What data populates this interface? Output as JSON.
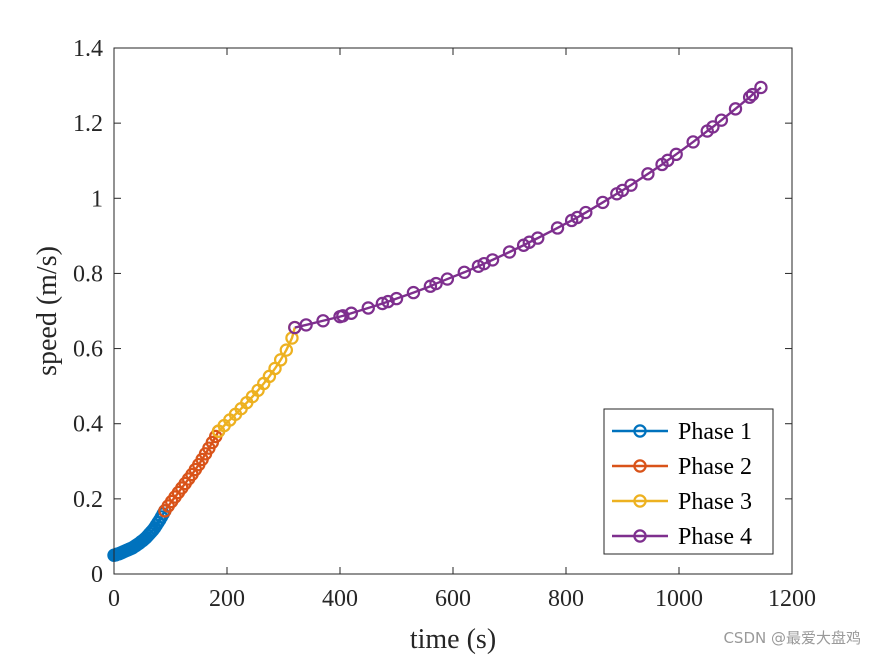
{
  "chart_data": {
    "type": "line",
    "title": "",
    "xlabel": "time (s)",
    "ylabel": "speed (m/s)",
    "xlim": [
      0,
      1200
    ],
    "ylim": [
      0,
      1.4
    ],
    "xticks": [
      0,
      200,
      400,
      600,
      800,
      1000,
      1200
    ],
    "xtick_labels": [
      "0",
      "200",
      "400",
      "600",
      "800",
      "1000",
      "1200"
    ],
    "yticks": [
      0,
      0.2,
      0.4,
      0.6,
      0.8,
      1.0,
      1.2,
      1.4
    ],
    "ytick_labels": [
      "0",
      "0.2",
      "0.4",
      "0.6",
      "0.8",
      "1",
      "1.2",
      "1.4"
    ],
    "grid": false,
    "legend_position": "bottom-right",
    "series": [
      {
        "name": "Phase 1",
        "color": "#0072BD",
        "marker": "circle",
        "x": [
          0,
          3,
          6,
          9,
          12,
          15,
          18,
          21,
          24,
          27,
          30,
          33,
          36,
          39,
          42,
          45,
          48,
          51,
          54,
          57,
          60,
          63,
          66,
          69,
          72,
          75,
          78,
          81,
          84,
          87,
          90
        ],
        "y": [
          0.05,
          0.051,
          0.053,
          0.054,
          0.056,
          0.058,
          0.06,
          0.062,
          0.064,
          0.066,
          0.068,
          0.07,
          0.073,
          0.076,
          0.079,
          0.082,
          0.086,
          0.089,
          0.093,
          0.097,
          0.102,
          0.107,
          0.112,
          0.117,
          0.123,
          0.13,
          0.137,
          0.144,
          0.152,
          0.16,
          0.168
        ]
      },
      {
        "name": "Phase 2",
        "color": "#D95319",
        "marker": "circle",
        "x": [
          90,
          96,
          102,
          108,
          114,
          120,
          126,
          132,
          138,
          144,
          150,
          156,
          162,
          168,
          174,
          180,
          185
        ],
        "y": [
          0.168,
          0.181,
          0.193,
          0.205,
          0.217,
          0.229,
          0.241,
          0.253,
          0.265,
          0.278,
          0.291,
          0.305,
          0.32,
          0.335,
          0.35,
          0.366,
          0.38
        ]
      },
      {
        "name": "Phase 3",
        "color": "#EDB120",
        "marker": "circle",
        "x": [
          185,
          195,
          205,
          215,
          225,
          235,
          245,
          255,
          265,
          275,
          285,
          295,
          305,
          315,
          320
        ],
        "y": [
          0.38,
          0.395,
          0.41,
          0.425,
          0.44,
          0.456,
          0.472,
          0.489,
          0.507,
          0.526,
          0.547,
          0.57,
          0.596,
          0.628,
          0.656
        ]
      },
      {
        "name": "Phase 4",
        "color": "#7E2F8E",
        "marker": "circle",
        "x": [
          320,
          340,
          370,
          400,
          405,
          420,
          450,
          475,
          485,
          500,
          530,
          560,
          570,
          590,
          620,
          645,
          655,
          670,
          700,
          725,
          735,
          750,
          785,
          810,
          820,
          835,
          865,
          890,
          900,
          915,
          945,
          970,
          980,
          995,
          1025,
          1050,
          1060,
          1075,
          1100,
          1125,
          1130,
          1145
        ],
        "y": [
          0.656,
          0.663,
          0.674,
          0.685,
          0.687,
          0.694,
          0.708,
          0.72,
          0.725,
          0.733,
          0.749,
          0.766,
          0.773,
          0.785,
          0.803,
          0.819,
          0.826,
          0.836,
          0.857,
          0.875,
          0.883,
          0.894,
          0.921,
          0.941,
          0.949,
          0.962,
          0.989,
          1.012,
          1.021,
          1.035,
          1.065,
          1.09,
          1.101,
          1.117,
          1.15,
          1.179,
          1.19,
          1.208,
          1.238,
          1.269,
          1.276,
          1.295
        ]
      }
    ]
  },
  "watermark": "CSDN @最爱大盘鸡"
}
